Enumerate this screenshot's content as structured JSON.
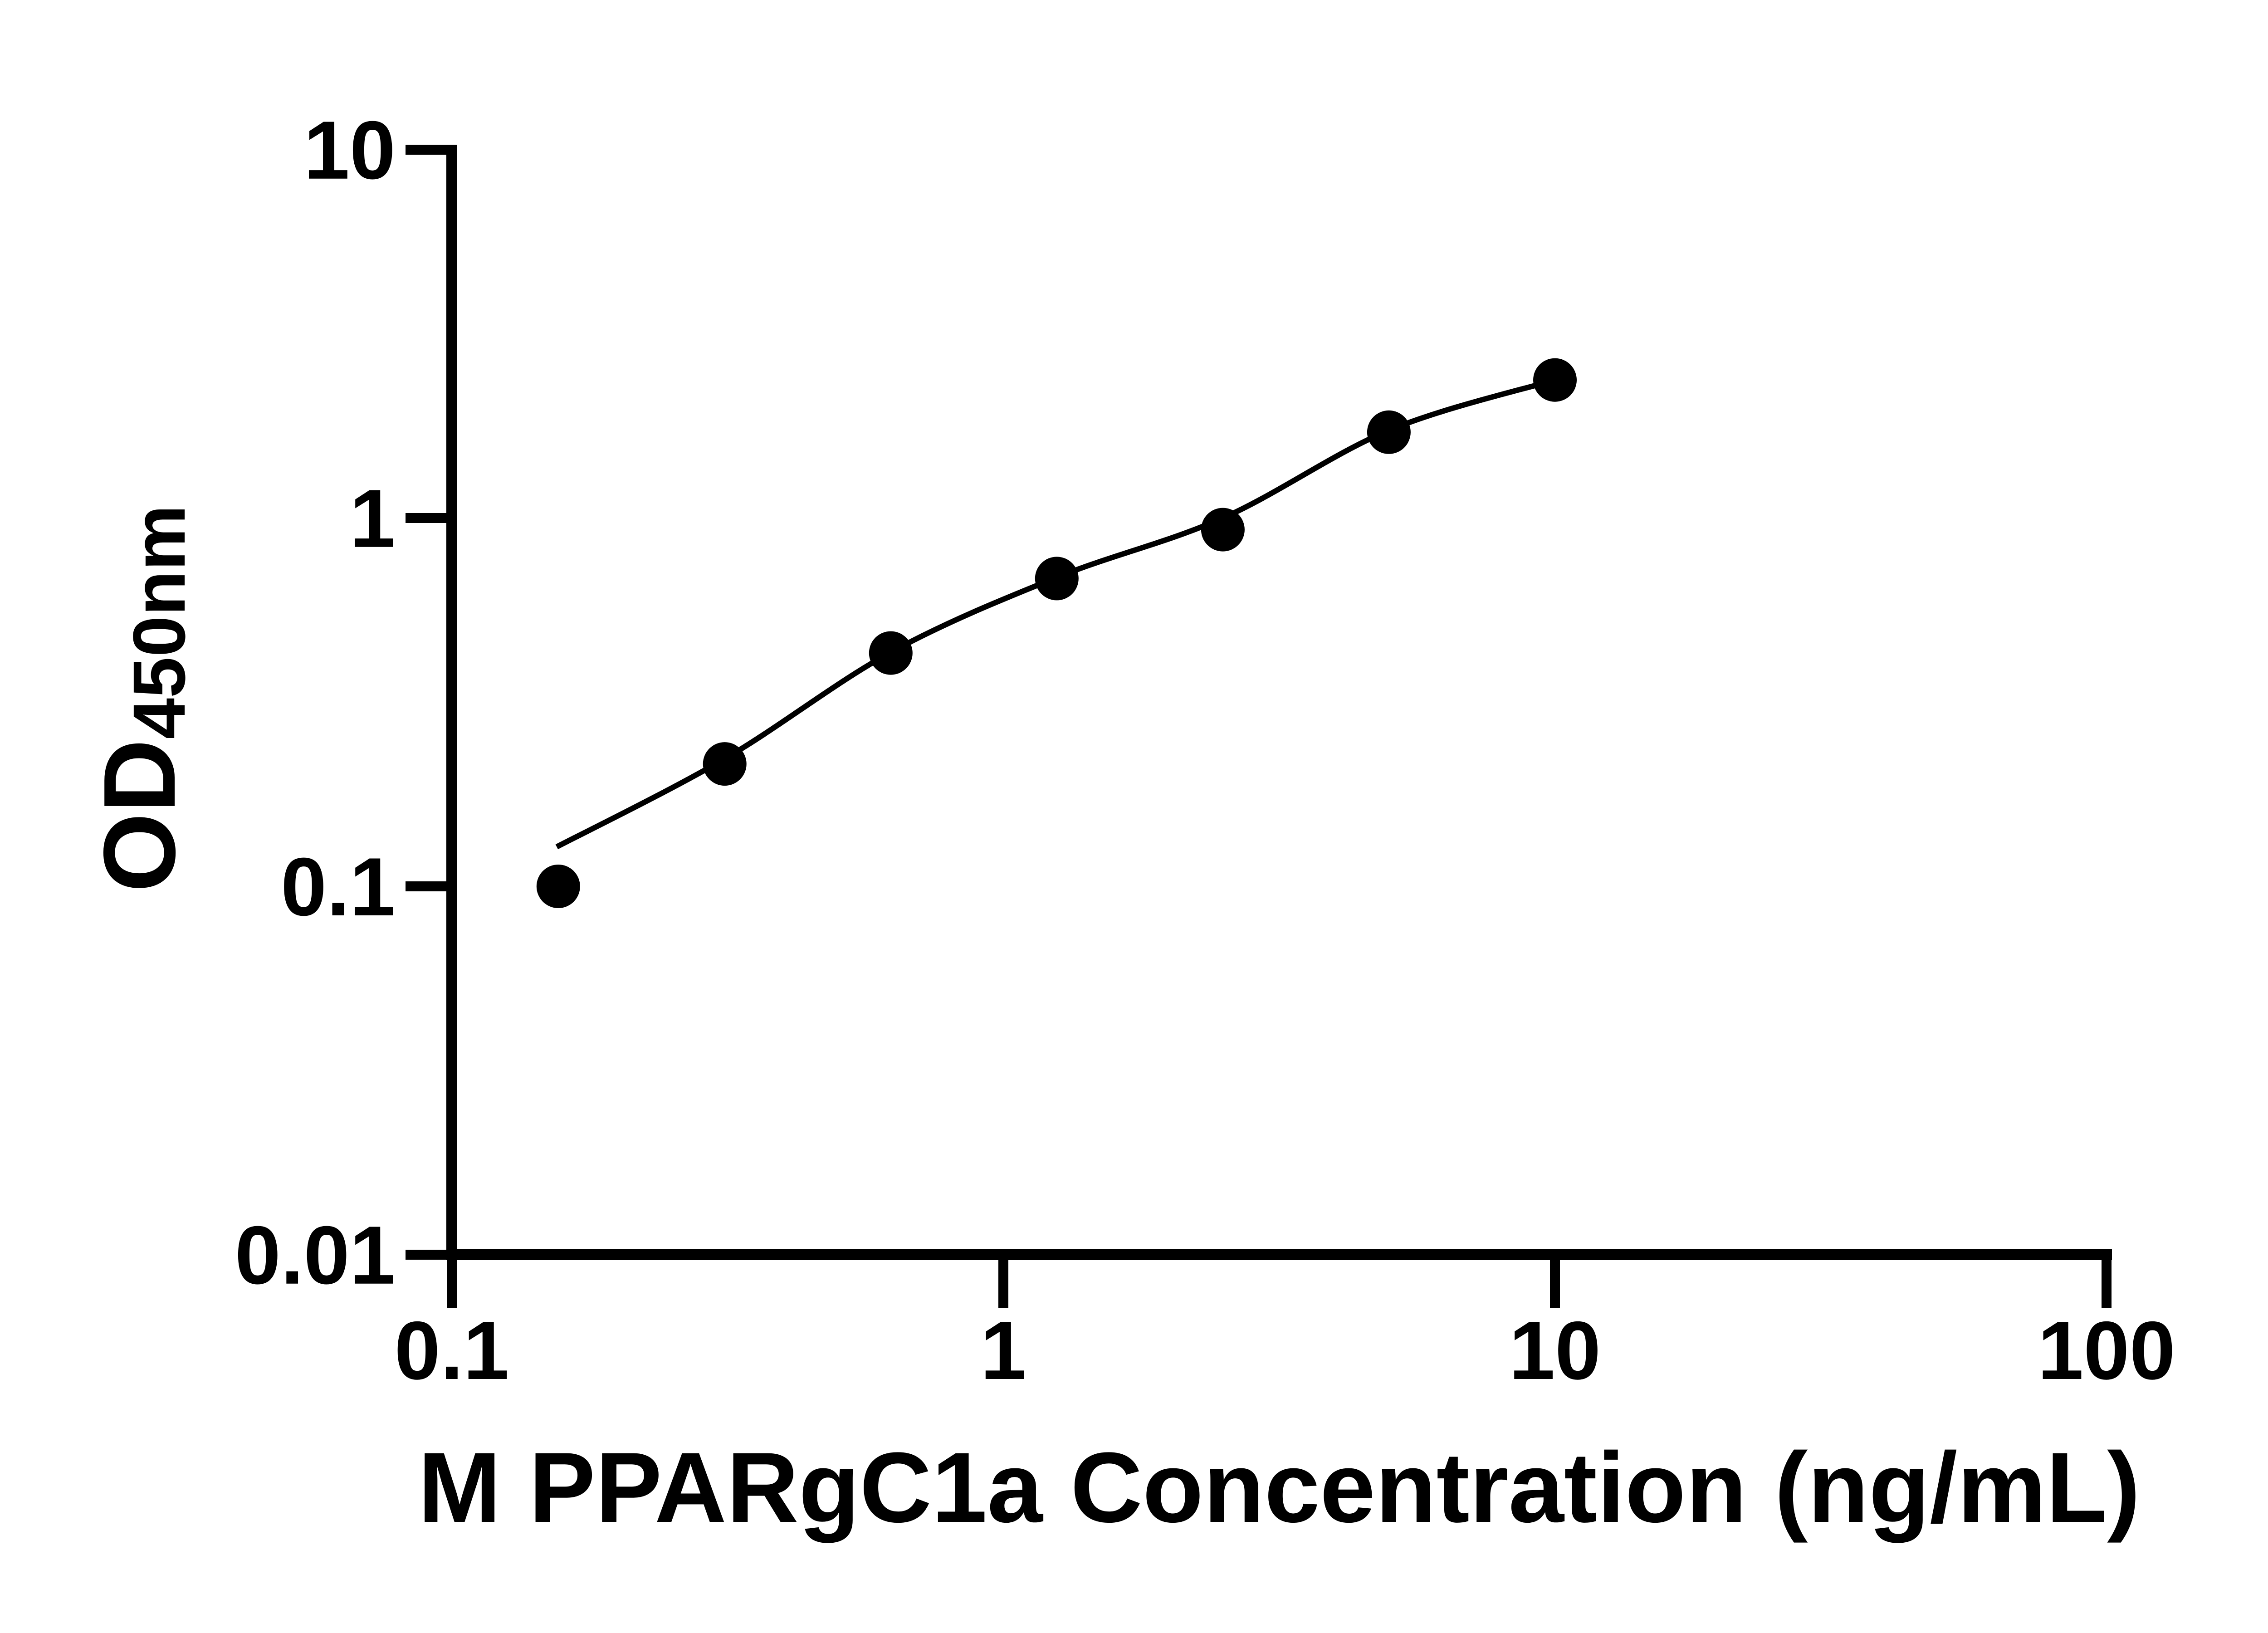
{
  "figure": {
    "background_color": "#ffffff",
    "ink_color": "#000000"
  },
  "chart_data": {
    "type": "scatter",
    "title": "",
    "xlabel": "M PPARgC1a Concentration (ng/mL)",
    "ylabel_main": "OD",
    "ylabel_sub": "450nm",
    "x_scale": "log",
    "y_scale": "log",
    "xlim": [
      0.1,
      100
    ],
    "ylim": [
      0.01,
      10
    ],
    "x_ticks": [
      0.1,
      1,
      10,
      100
    ],
    "x_tick_labels": [
      "0.1",
      "1",
      "10",
      "100"
    ],
    "y_ticks": [
      0.01,
      0.1,
      1,
      10
    ],
    "y_tick_labels": [
      "0.01",
      "0.1",
      "1",
      "10"
    ],
    "grid": false,
    "legend_position": "none",
    "series": [
      {
        "name": "standard-points",
        "role": "points",
        "marker": "filled-circle",
        "color": "#000000",
        "x": [
          0.156,
          0.3125,
          0.625,
          1.25,
          2.5,
          5,
          10
        ],
        "y": [
          0.1,
          0.215,
          0.43,
          0.685,
          0.93,
          1.71,
          2.37
        ]
      },
      {
        "name": "fit-curve",
        "role": "line",
        "color": "#000000",
        "x": [
          0.155,
          0.3125,
          0.625,
          1.25,
          2.5,
          5,
          10
        ],
        "y": [
          0.128,
          0.222,
          0.432,
          0.69,
          1.0,
          1.73,
          2.37
        ]
      }
    ]
  }
}
